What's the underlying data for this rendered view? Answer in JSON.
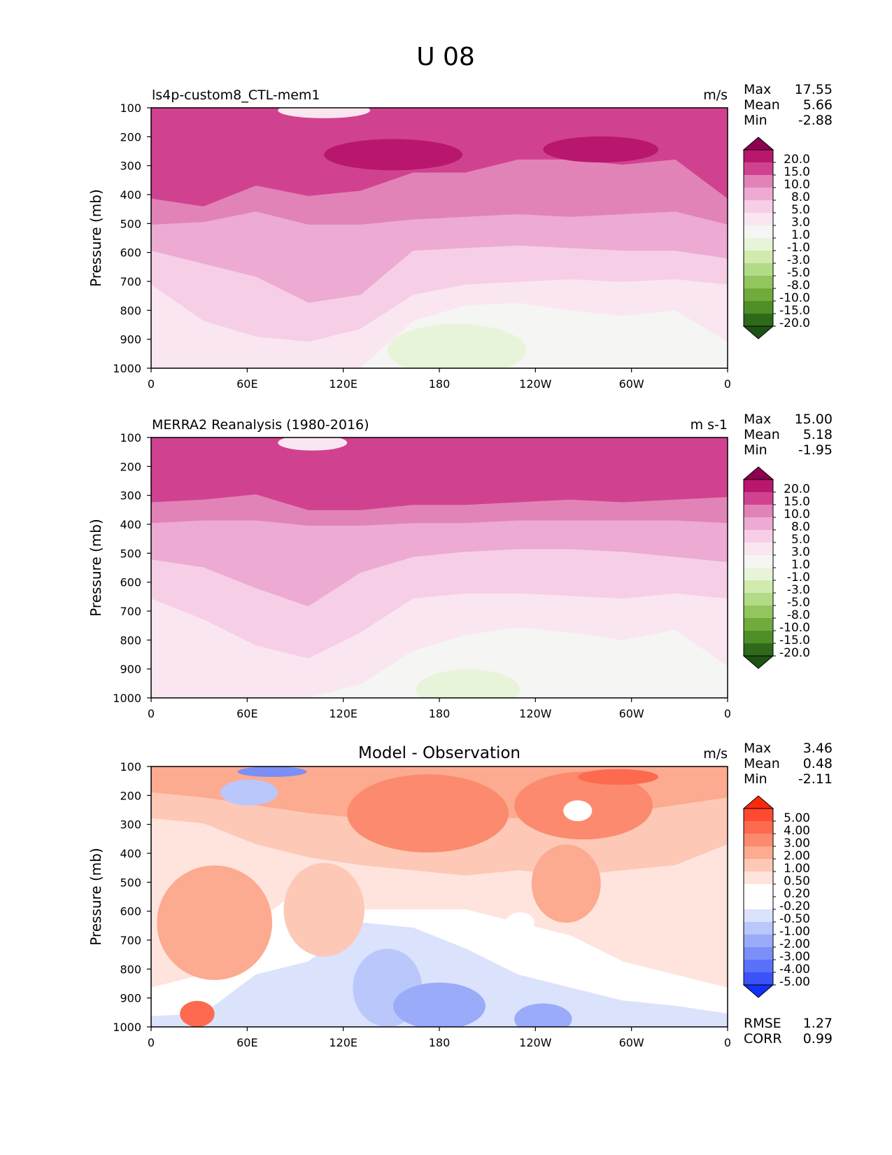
{
  "figure_title": "U 08",
  "y_axis_label": "Pressure (mb)",
  "chart_data": [
    {
      "type": "heatmap",
      "title": "ls4p-custom8_CTL-mem1",
      "units": "m/s",
      "ylabel": "Pressure (mb)",
      "x_ticks": [
        "0",
        "60E",
        "120E",
        "180",
        "120W",
        "60W",
        "0"
      ],
      "y_ticks": [
        "100",
        "200",
        "300",
        "400",
        "500",
        "600",
        "700",
        "800",
        "900",
        "1000"
      ],
      "ylim": [
        1000,
        100
      ],
      "stats": [
        {
          "label": "Max",
          "value": "17.55"
        },
        {
          "label": "Mean",
          "value": "5.66"
        },
        {
          "label": "Min",
          "value": "-2.88"
        }
      ],
      "colorbar_labels": [
        "20.0",
        "15.0",
        "10.0",
        "8.0",
        "5.0",
        "3.0",
        "1.0",
        "-1.0",
        "-3.0",
        "-5.0",
        "-8.0",
        "-10.0",
        "-15.0",
        "-20.0"
      ],
      "colorbar_colors": [
        "#8e0152",
        "#b8176d",
        "#d0428f",
        "#e283b7",
        "#edaad3",
        "#f6cfe6",
        "#fae6f1",
        "#f5f5f3",
        "#e8f4d9",
        "#d0ebad",
        "#b2db87",
        "#93c55f",
        "#71ab3b",
        "#4f8f28",
        "#2e6a1a",
        "#1e5215"
      ],
      "field_bands": [
        {
          "top": [
            0,
            0,
            0,
            0,
            0,
            0,
            0,
            0,
            0,
            0,
            0,
            0
          ],
          "bottom": [
            35,
            38,
            30,
            34,
            32,
            25,
            25,
            20,
            20,
            22,
            20,
            35
          ],
          "color": "#d0428f"
        },
        {
          "top": [
            35,
            38,
            30,
            34,
            32,
            25,
            25,
            20,
            20,
            22,
            20,
            35
          ],
          "bottom": [
            45,
            44,
            40,
            45,
            45,
            43,
            42,
            41,
            42,
            41,
            40,
            45
          ],
          "color": "#e283b7"
        },
        {
          "top": [
            45,
            44,
            40,
            45,
            45,
            43,
            42,
            41,
            42,
            41,
            40,
            45
          ],
          "bottom": [
            55,
            60,
            65,
            75,
            72,
            55,
            54,
            53,
            54,
            55,
            55,
            58
          ],
          "color": "#edaad3"
        },
        {
          "top": [
            55,
            60,
            65,
            75,
            72,
            55,
            54,
            53,
            54,
            55,
            55,
            58
          ],
          "bottom": [
            68,
            82,
            88,
            90,
            85,
            72,
            68,
            67,
            66,
            67,
            66,
            68
          ],
          "color": "#f6cfe6"
        },
        {
          "top": [
            68,
            82,
            88,
            90,
            85,
            72,
            68,
            67,
            66,
            67,
            66,
            68
          ],
          "bottom": [
            100,
            100,
            100,
            100,
            100,
            82,
            76,
            75,
            78,
            80,
            78,
            90
          ],
          "color": "#fae6f1"
        },
        {
          "top": [
            100,
            100,
            100,
            100,
            100,
            82,
            76,
            75,
            78,
            80,
            78,
            90
          ],
          "bottom": [
            100,
            100,
            100,
            100,
            100,
            100,
            100,
            100,
            100,
            100,
            100,
            100
          ],
          "color": "#f5f5f3"
        }
      ],
      "field_blobs": [
        {
          "x": 0.42,
          "y": 0.18,
          "rx": 0.12,
          "ry": 0.06,
          "color": "#b8176d"
        },
        {
          "x": 0.78,
          "y": 0.16,
          "rx": 0.1,
          "ry": 0.05,
          "color": "#b8176d"
        },
        {
          "x": 0.53,
          "y": 0.93,
          "rx": 0.12,
          "ry": 0.1,
          "color": "#e8f4d9"
        },
        {
          "x": 0.3,
          "y": 0.01,
          "rx": 0.08,
          "ry": 0.03,
          "color": "#fae6f1"
        }
      ],
      "colorbar_kind": "wind"
    },
    {
      "type": "heatmap",
      "title": "MERRA2 Reanalysis (1980-2016)",
      "units": "m s-1",
      "ylabel": "Pressure (mb)",
      "x_ticks": [
        "0",
        "60E",
        "120E",
        "180",
        "120W",
        "60W",
        "0"
      ],
      "y_ticks": [
        "100",
        "200",
        "300",
        "400",
        "500",
        "600",
        "700",
        "800",
        "900",
        "1000"
      ],
      "ylim": [
        1000,
        100
      ],
      "stats": [
        {
          "label": "Max",
          "value": "15.00"
        },
        {
          "label": "Mean",
          "value": "5.18"
        },
        {
          "label": "Min",
          "value": "-1.95"
        }
      ],
      "colorbar_labels": [
        "20.0",
        "15.0",
        "10.0",
        "8.0",
        "5.0",
        "3.0",
        "1.0",
        "-1.0",
        "-3.0",
        "-5.0",
        "-8.0",
        "-10.0",
        "-15.0",
        "-20.0"
      ],
      "colorbar_colors": [
        "#8e0152",
        "#b8176d",
        "#d0428f",
        "#e283b7",
        "#edaad3",
        "#f6cfe6",
        "#fae6f1",
        "#f5f5f3",
        "#e8f4d9",
        "#d0ebad",
        "#b2db87",
        "#93c55f",
        "#71ab3b",
        "#4f8f28",
        "#2e6a1a",
        "#1e5215"
      ],
      "field_bands": [
        {
          "top": [
            0,
            0,
            0,
            0,
            0,
            0,
            0,
            0,
            0,
            0,
            0,
            0
          ],
          "bottom": [
            25,
            24,
            22,
            28,
            28,
            26,
            26,
            25,
            24,
            25,
            24,
            23
          ],
          "color": "#d0428f"
        },
        {
          "top": [
            25,
            24,
            22,
            28,
            28,
            26,
            26,
            25,
            24,
            25,
            24,
            23
          ],
          "bottom": [
            33,
            32,
            32,
            34,
            34,
            33,
            33,
            32,
            32,
            32,
            32,
            33
          ],
          "color": "#e283b7"
        },
        {
          "top": [
            33,
            32,
            32,
            34,
            34,
            33,
            33,
            32,
            32,
            32,
            32,
            33
          ],
          "bottom": [
            47,
            50,
            58,
            65,
            52,
            46,
            44,
            43,
            43,
            44,
            46,
            48
          ],
          "color": "#edaad3"
        },
        {
          "top": [
            47,
            50,
            58,
            65,
            52,
            46,
            44,
            43,
            43,
            44,
            46,
            48
          ],
          "bottom": [
            62,
            70,
            80,
            85,
            75,
            62,
            60,
            60,
            61,
            62,
            60,
            62
          ],
          "color": "#f6cfe6"
        },
        {
          "top": [
            62,
            70,
            80,
            85,
            75,
            62,
            60,
            60,
            61,
            62,
            60,
            62
          ],
          "bottom": [
            100,
            100,
            100,
            100,
            95,
            82,
            76,
            73,
            75,
            78,
            74,
            88
          ],
          "color": "#fae6f1"
        },
        {
          "top": [
            100,
            100,
            100,
            100,
            95,
            82,
            76,
            73,
            75,
            78,
            74,
            88
          ],
          "bottom": [
            100,
            100,
            100,
            100,
            100,
            100,
            100,
            100,
            100,
            100,
            100,
            100
          ],
          "color": "#f5f5f3"
        }
      ],
      "field_blobs": [
        {
          "x": 0.55,
          "y": 0.97,
          "rx": 0.09,
          "ry": 0.08,
          "color": "#e8f4d9"
        },
        {
          "x": 0.28,
          "y": 0.02,
          "rx": 0.06,
          "ry": 0.03,
          "color": "#fae6f1"
        }
      ],
      "colorbar_kind": "wind"
    },
    {
      "type": "heatmap",
      "title": "Model - Observation",
      "units": "m/s",
      "ylabel": "Pressure (mb)",
      "x_ticks": [
        "0",
        "60E",
        "120E",
        "180",
        "120W",
        "60W",
        "0"
      ],
      "y_ticks": [
        "100",
        "200",
        "300",
        "400",
        "500",
        "600",
        "700",
        "800",
        "900",
        "1000"
      ],
      "ylim": [
        1000,
        100
      ],
      "stats": [
        {
          "label": "Max",
          "value": "3.46"
        },
        {
          "label": "Mean",
          "value": "0.48"
        },
        {
          "label": "Min",
          "value": "-2.11"
        }
      ],
      "extra_stats": [
        {
          "label": "RMSE",
          "value": "1.27"
        },
        {
          "label": "CORR",
          "value": "0.99"
        }
      ],
      "colorbar_labels": [
        "5.00",
        "4.00",
        "3.00",
        "2.00",
        "1.00",
        "0.50",
        "0.20",
        "-0.20",
        "-0.50",
        "-1.00",
        "-2.00",
        "-3.00",
        "-4.00",
        "-5.00"
      ],
      "colorbar_colors": [
        "#ff2a0a",
        "#fe4a30",
        "#fd6a4f",
        "#fc8a6e",
        "#fcaa90",
        "#fdc8b6",
        "#fee4dc",
        "#ffffff",
        "#ffffff",
        "#dbe2fc",
        "#bac7fb",
        "#9aabfa",
        "#7a8ff8",
        "#5a70f8",
        "#3a52f8",
        "#1430fa"
      ],
      "field_bands": [
        {
          "top": [
            0,
            0,
            0,
            0,
            0,
            0,
            0,
            0,
            0,
            0,
            0,
            0
          ],
          "bottom": [
            10,
            12,
            15,
            18,
            20,
            18,
            20,
            20,
            22,
            18,
            15,
            12
          ],
          "color": "#fcaa90"
        },
        {
          "top": [
            10,
            12,
            15,
            18,
            20,
            18,
            20,
            20,
            22,
            18,
            15,
            12
          ],
          "bottom": [
            20,
            22,
            30,
            35,
            38,
            40,
            42,
            40,
            42,
            40,
            38,
            30
          ],
          "color": "#fdc8b6"
        },
        {
          "top": [
            20,
            22,
            30,
            35,
            38,
            40,
            42,
            40,
            42,
            40,
            38,
            30
          ],
          "bottom": [
            85,
            80,
            60,
            45,
            55,
            55,
            55,
            60,
            65,
            75,
            80,
            85
          ],
          "color": "#fee4dc"
        },
        {
          "top": [
            85,
            80,
            60,
            45,
            55,
            55,
            55,
            60,
            65,
            75,
            80,
            85
          ],
          "bottom": [
            96,
            95,
            80,
            75,
            60,
            62,
            70,
            80,
            85,
            90,
            92,
            95
          ],
          "color": "#ffffff"
        },
        {
          "top": [
            96,
            95,
            80,
            75,
            60,
            62,
            70,
            80,
            85,
            90,
            92,
            95
          ],
          "bottom": [
            100,
            100,
            100,
            100,
            100,
            100,
            100,
            100,
            100,
            100,
            100,
            100
          ],
          "color": "#dbe2fc"
        }
      ],
      "field_blobs": [
        {
          "x": 0.11,
          "y": 0.6,
          "rx": 0.1,
          "ry": 0.22,
          "color": "#fcaa90"
        },
        {
          "x": 0.3,
          "y": 0.55,
          "rx": 0.07,
          "ry": 0.18,
          "color": "#fdc8b6"
        },
        {
          "x": 0.48,
          "y": 0.18,
          "rx": 0.14,
          "ry": 0.15,
          "color": "#fc8a6e"
        },
        {
          "x": 0.75,
          "y": 0.15,
          "rx": 0.12,
          "ry": 0.13,
          "color": "#fc8a6e"
        },
        {
          "x": 0.81,
          "y": 0.04,
          "rx": 0.07,
          "ry": 0.03,
          "color": "#fd6a4f"
        },
        {
          "x": 0.72,
          "y": 0.45,
          "rx": 0.06,
          "ry": 0.15,
          "color": "#fcaa90"
        },
        {
          "x": 0.21,
          "y": 0.02,
          "rx": 0.06,
          "ry": 0.02,
          "color": "#7a8ff8"
        },
        {
          "x": 0.17,
          "y": 0.1,
          "rx": 0.05,
          "ry": 0.05,
          "color": "#bac7fb"
        },
        {
          "x": 0.41,
          "y": 0.85,
          "rx": 0.06,
          "ry": 0.15,
          "color": "#bac7fb"
        },
        {
          "x": 0.5,
          "y": 0.92,
          "rx": 0.08,
          "ry": 0.09,
          "color": "#9aabfa"
        },
        {
          "x": 0.68,
          "y": 0.97,
          "rx": 0.05,
          "ry": 0.06,
          "color": "#9aabfa"
        },
        {
          "x": 0.74,
          "y": 0.17,
          "rx": 0.025,
          "ry": 0.04,
          "color": "#ffffff"
        },
        {
          "x": 0.64,
          "y": 0.6,
          "rx": 0.025,
          "ry": 0.04,
          "color": "#ffffff"
        },
        {
          "x": 0.08,
          "y": 0.95,
          "rx": 0.03,
          "ry": 0.05,
          "color": "#fd6a4f"
        }
      ],
      "colorbar_kind": "diff"
    }
  ]
}
